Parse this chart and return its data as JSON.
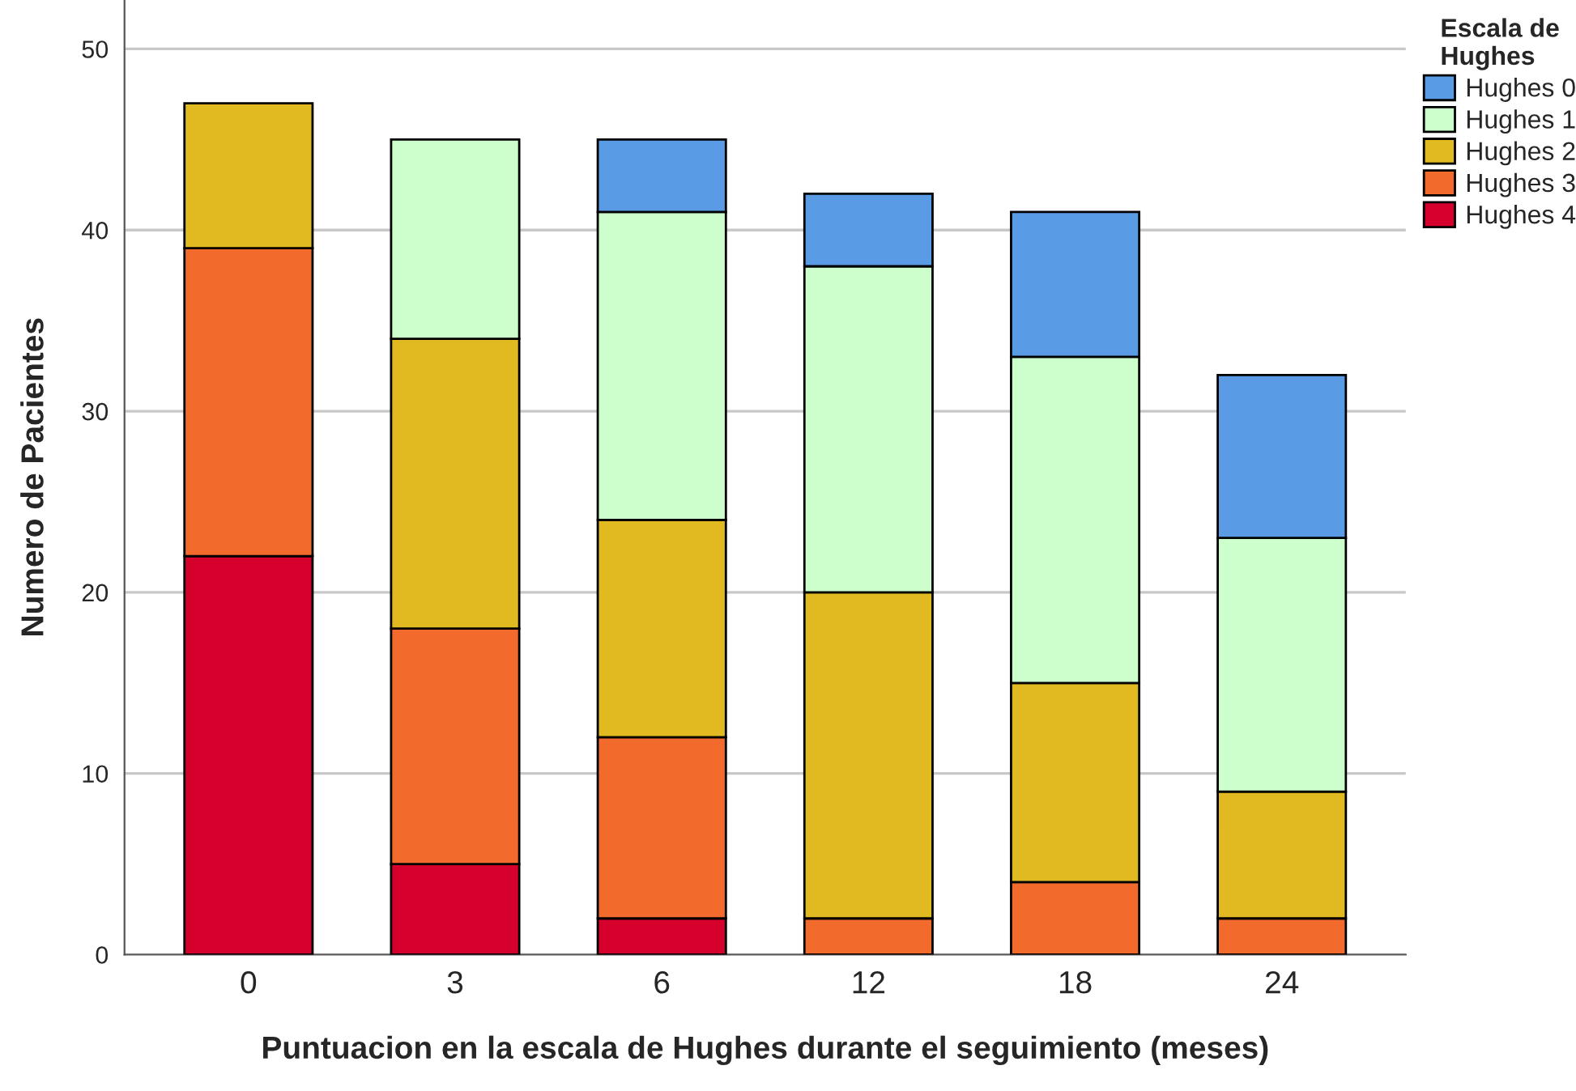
{
  "chart_data": {
    "type": "bar",
    "stacked": true,
    "xlabel": "Puntuacion en la escala de Hughes durante el seguimiento (meses)",
    "ylabel": "Numero de Pacientes",
    "legend_title": "Escala de\nHughes",
    "legend": "top right",
    "grid": "y",
    "categories": [
      "0",
      "3",
      "6",
      "12",
      "18",
      "24"
    ],
    "ylim": [
      0,
      52.7
    ],
    "yticks": [
      0,
      10,
      20,
      30,
      40,
      50
    ],
    "series": [
      {
        "name": "Hughes 4",
        "color": "#d6002c",
        "values": [
          22,
          5,
          2,
          null,
          null,
          null
        ]
      },
      {
        "name": "Hughes 3",
        "color": "#f26a2c",
        "values": [
          17,
          13,
          10,
          2,
          4,
          2
        ]
      },
      {
        "name": "Hughes 2",
        "color": "#e1b920",
        "values": [
          8,
          16,
          12,
          18,
          11,
          7
        ]
      },
      {
        "name": "Hughes 1",
        "color": "#ccffcc",
        "values": [
          null,
          11,
          17,
          18,
          18,
          14
        ]
      },
      {
        "name": "Hughes 0",
        "color": "#5a9be6",
        "values": [
          null,
          null,
          4,
          4,
          8,
          9
        ]
      }
    ]
  }
}
